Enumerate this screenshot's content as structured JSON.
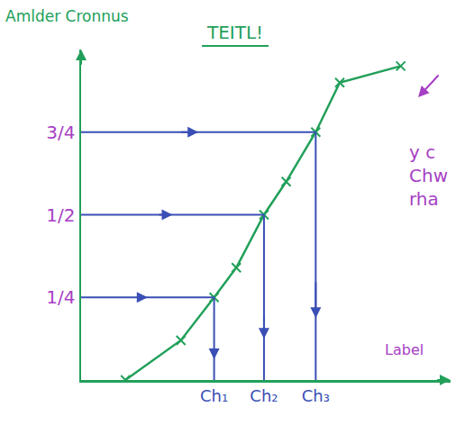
{
  "chart_data": {
    "type": "line",
    "title": "TEITL!",
    "y_label": "Amlder Cronnus",
    "x_label": "Label",
    "annotation": [
      "y c",
      "Chw",
      "rha"
    ],
    "x": [
      1.2,
      2.7,
      3.6,
      4.2,
      4.95,
      5.55,
      6.35,
      7.0,
      8.65
    ],
    "values": [
      0,
      0.12,
      0.25,
      0.34,
      0.5,
      0.6,
      0.75,
      0.9,
      0.95
    ],
    "color": "#22a05a",
    "marker": "x",
    "xlim": [
      0,
      10
    ],
    "ylim": [
      0,
      1
    ],
    "xticks": [
      {
        "value": 3.6,
        "label": "Ch₁"
      },
      {
        "value": 4.95,
        "label": "Ch₂"
      },
      {
        "value": 6.35,
        "label": "Ch₃"
      }
    ],
    "yticks": [
      {
        "value": 0.25,
        "label": "1/4"
      },
      {
        "value": 0.5,
        "label": "1/2"
      },
      {
        "value": 0.75,
        "label": "3/4"
      }
    ],
    "grid": false
  }
}
